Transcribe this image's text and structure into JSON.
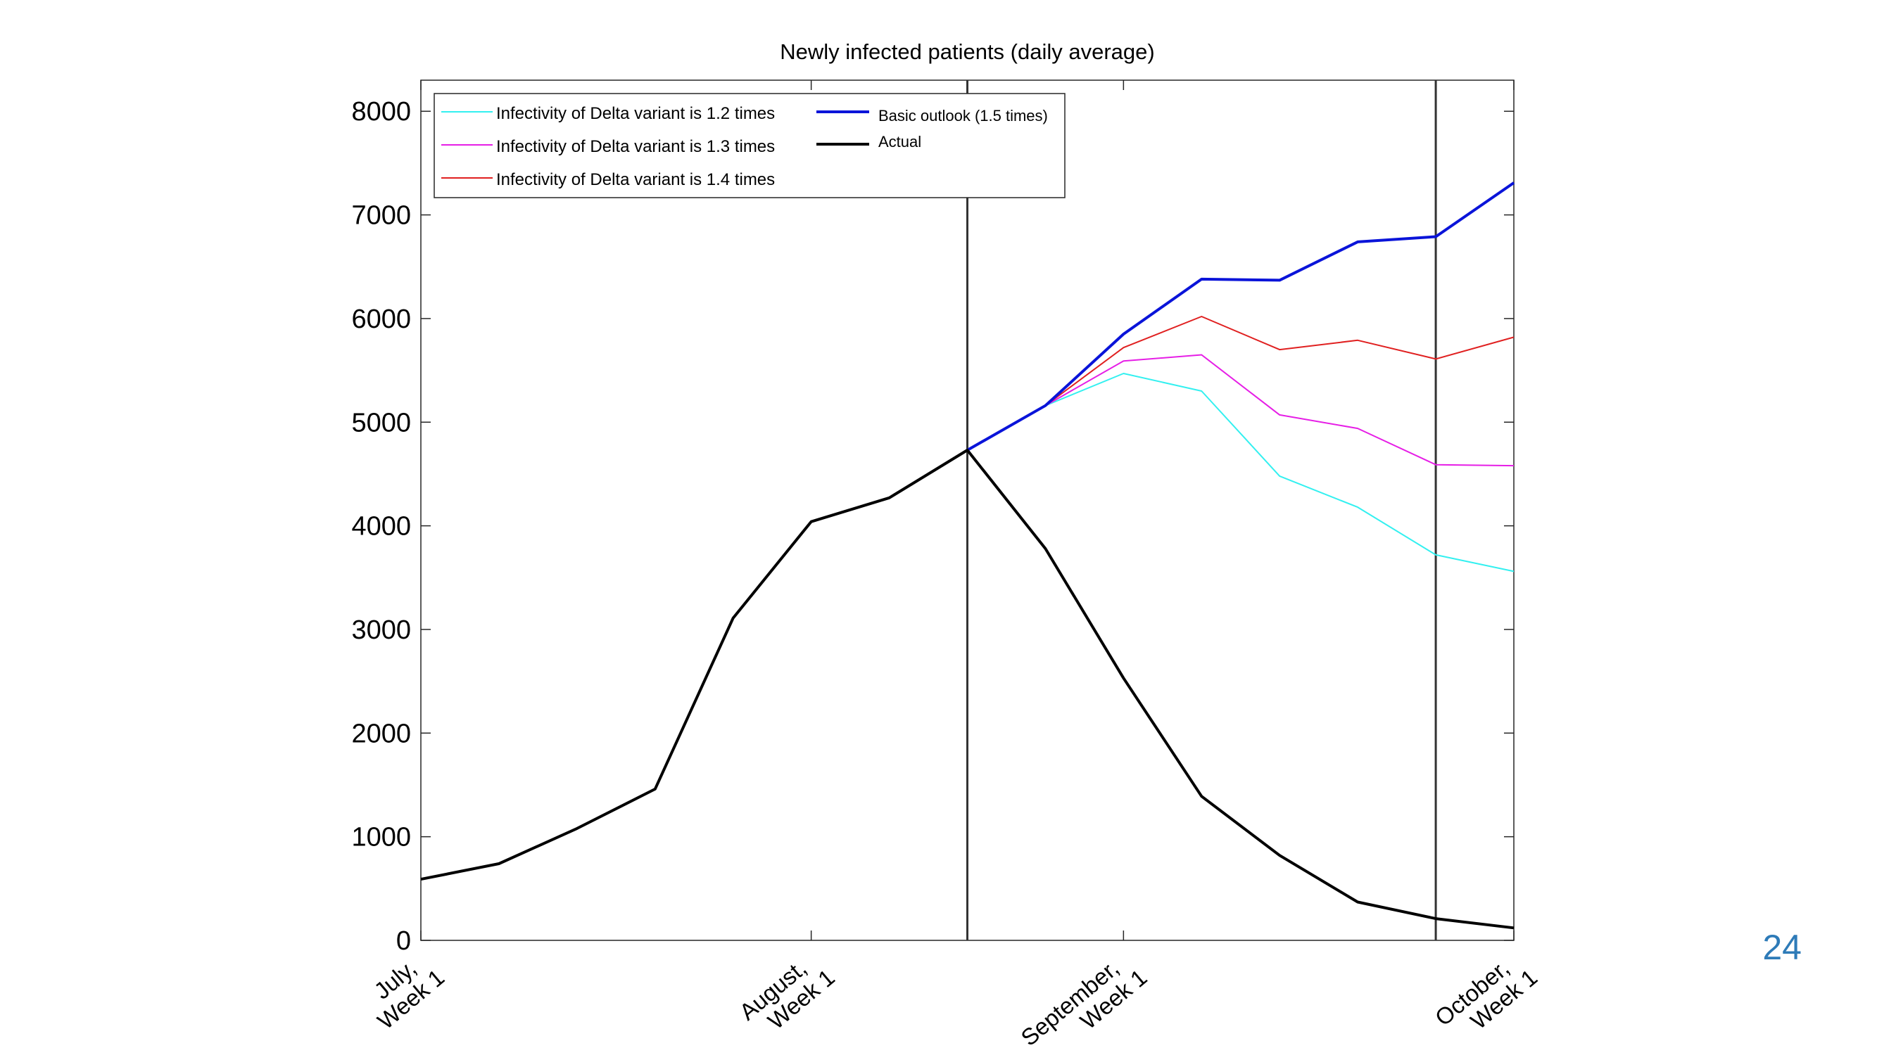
{
  "slide": {
    "page_number": "24",
    "page_number_color": "#2e7bb8"
  },
  "chart_data": {
    "type": "line",
    "title": "Newly infected patients (daily average)",
    "xlabel": "",
    "ylabel": "",
    "xlim": [
      0,
      14
    ],
    "ylim": [
      0,
      8300
    ],
    "yticks": [
      0,
      1000,
      2000,
      3000,
      4000,
      5000,
      6000,
      7000,
      8000
    ],
    "xticks": [
      {
        "x": 0,
        "label": [
          "July,",
          "Week 1"
        ]
      },
      {
        "x": 5,
        "label": [
          "August,",
          "Week 1"
        ]
      },
      {
        "x": 9,
        "label": [
          "September,",
          "Week 1"
        ]
      },
      {
        "x": 14,
        "label": [
          "October,",
          "Week 1"
        ]
      }
    ],
    "vertical_markers": [
      7,
      13
    ],
    "grid": false,
    "legend_position": "top-left",
    "series": [
      {
        "name": "Infectivity of Delta variant is 1.2 times",
        "color": "#33f0f0",
        "width": 2,
        "x": [
          7,
          8,
          9,
          10,
          11,
          12,
          13,
          14
        ],
        "values": [
          4730,
          5160,
          5470,
          5300,
          4480,
          4180,
          3720,
          3560
        ]
      },
      {
        "name": "Infectivity of Delta variant is 1.3 times",
        "color": "#e61ee6",
        "width": 2,
        "x": [
          7,
          8,
          9,
          10,
          11,
          12,
          13,
          14
        ],
        "values": [
          4730,
          5160,
          5590,
          5650,
          5070,
          4940,
          4590,
          4580
        ]
      },
      {
        "name": "Infectivity of Delta variant is 1.4 times",
        "color": "#e02020",
        "width": 2,
        "x": [
          7,
          8,
          9,
          10,
          11,
          12,
          13,
          14
        ],
        "values": [
          4730,
          5160,
          5720,
          6020,
          5700,
          5790,
          5610,
          5820
        ]
      },
      {
        "name": "Basic outlook (1.5 times)",
        "color": "#0a14d9",
        "width": 4,
        "x": [
          7,
          8,
          9,
          10,
          11,
          12,
          13,
          14
        ],
        "values": [
          4730,
          5160,
          5850,
          6380,
          6370,
          6740,
          6790,
          7310
        ]
      },
      {
        "name": "Actual",
        "color": "#000000",
        "width": 4,
        "x": [
          0,
          1,
          2,
          3,
          4,
          5,
          6,
          7,
          8,
          9,
          10,
          11,
          12,
          13,
          14
        ],
        "values": [
          590,
          740,
          1080,
          1460,
          3110,
          4040,
          4270,
          4730,
          3780,
          2530,
          1390,
          820,
          370,
          210,
          120
        ]
      }
    ]
  }
}
